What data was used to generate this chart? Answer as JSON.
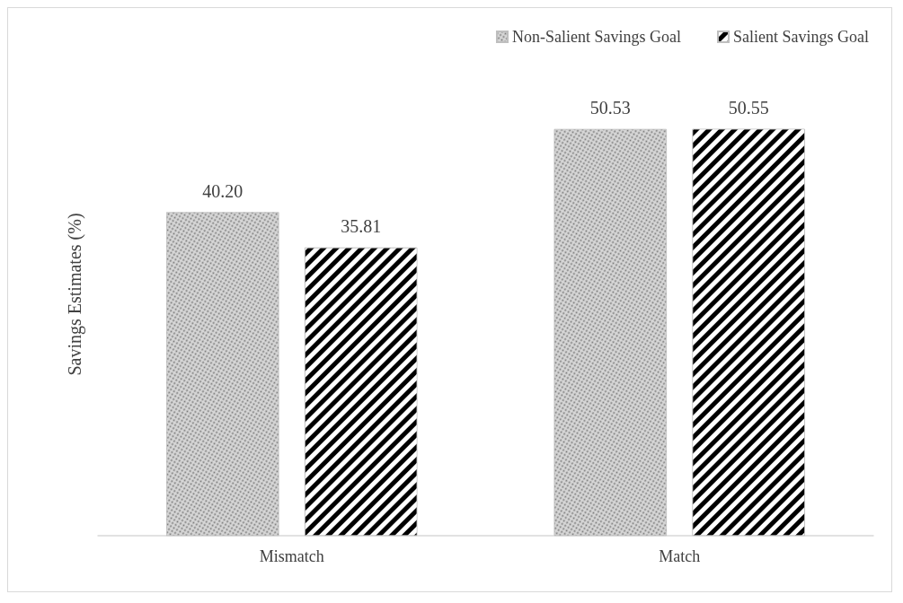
{
  "chart_data": {
    "type": "bar",
    "ylabel": "Savings Estimates (%)",
    "categories": [
      "Mismatch",
      "Match"
    ],
    "series": [
      {
        "name": "Non-Salient Savings Goal",
        "color": "#d9d9d9",
        "values": [
          40.2,
          50.53
        ],
        "value_labels": [
          "40.20",
          "50.53"
        ]
      },
      {
        "name": "Salient Savings Goal",
        "color": "#000000",
        "values": [
          35.81,
          50.55
        ],
        "value_labels": [
          "35.81",
          "50.55"
        ]
      }
    ],
    "grid": false,
    "legend": "top right"
  }
}
